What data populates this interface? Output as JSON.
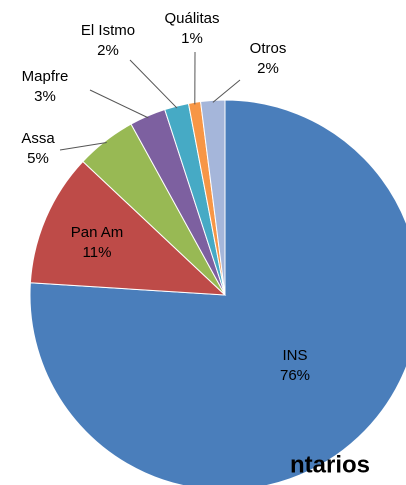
{
  "chart_data": {
    "type": "pie",
    "categories": [
      "INS",
      "Pan Am",
      "Assa",
      "Mapfre",
      "El Istmo",
      "Quálitas",
      "Otros"
    ],
    "values": [
      76,
      11,
      5,
      3,
      2,
      1,
      2
    ],
    "value_labels": [
      "76%",
      "11%",
      "5%",
      "3%",
      "2%",
      "1%",
      "2%"
    ],
    "colors": [
      "#4a7ebb",
      "#be4b48",
      "#98b954",
      "#7d60a0",
      "#46aac5",
      "#f79646",
      "#a5b6da"
    ],
    "annotation": "ntarios"
  }
}
